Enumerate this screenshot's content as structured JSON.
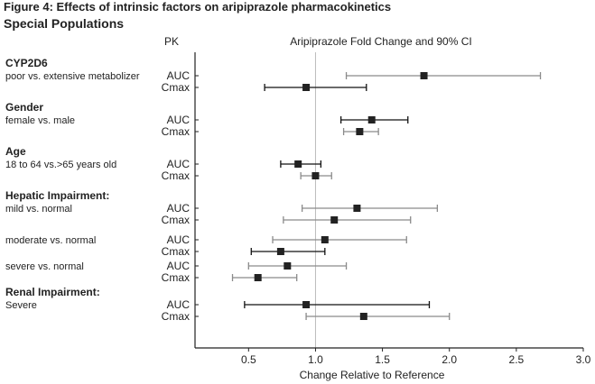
{
  "figure_title": "Figure 4:  Effects of intrinsic factors on aripiprazole pharmacokinetics",
  "subtitle": "Special Populations",
  "chart_data": {
    "type": "forest",
    "title": "Aripiprazole Fold Change and 90% CI",
    "pk_column_header": "PK",
    "xlabel": "Change Relative to Reference",
    "xlim": [
      0.1,
      3.0
    ],
    "xticks": [
      0.5,
      1.0,
      1.5,
      2.0,
      2.5,
      3.0
    ],
    "xtick_labels": [
      "0.5",
      "1.0",
      "1.5",
      "2.0",
      "2.5",
      "3.0"
    ],
    "reference_line": 1.0,
    "grid": false,
    "colors": {
      "marker": "#222222",
      "ci_dark": "#111111",
      "ci_gray": "#8a8a8a",
      "reference": "#bbbbbb"
    },
    "groups": [
      {
        "heading": "CYP2D6",
        "comparison": "poor vs. extensive metabolizer",
        "rows": [
          {
            "pk": "AUC",
            "estimate": 1.81,
            "lower": 1.23,
            "upper": 2.68,
            "ci_style": "gray"
          },
          {
            "pk": "Cmax",
            "estimate": 0.93,
            "lower": 0.62,
            "upper": 1.38,
            "ci_style": "dark"
          }
        ]
      },
      {
        "heading": "Gender",
        "comparison": "female vs. male",
        "rows": [
          {
            "pk": "AUC",
            "estimate": 1.42,
            "lower": 1.19,
            "upper": 1.69,
            "ci_style": "dark"
          },
          {
            "pk": "Cmax",
            "estimate": 1.33,
            "lower": 1.21,
            "upper": 1.47,
            "ci_style": "gray"
          }
        ]
      },
      {
        "heading": "Age",
        "comparison": "18 to 64 vs.>65 years old",
        "rows": [
          {
            "pk": "AUC",
            "estimate": 0.87,
            "lower": 0.74,
            "upper": 1.04,
            "ci_style": "dark"
          },
          {
            "pk": "Cmax",
            "estimate": 1.0,
            "lower": 0.89,
            "upper": 1.12,
            "ci_style": "gray"
          }
        ]
      },
      {
        "heading": "Hepatic Impairment:",
        "comparison": "mild vs. normal",
        "rows": [
          {
            "pk": "AUC",
            "estimate": 1.31,
            "lower": 0.9,
            "upper": 1.91,
            "ci_style": "gray"
          },
          {
            "pk": "Cmax",
            "estimate": 1.14,
            "lower": 0.76,
            "upper": 1.71,
            "ci_style": "gray"
          }
        ]
      },
      {
        "heading": "",
        "comparison": "moderate vs. normal",
        "rows": [
          {
            "pk": "AUC",
            "estimate": 1.07,
            "lower": 0.68,
            "upper": 1.68,
            "ci_style": "gray"
          },
          {
            "pk": "Cmax",
            "estimate": 0.74,
            "lower": 0.52,
            "upper": 1.07,
            "ci_style": "dark"
          }
        ]
      },
      {
        "heading": "",
        "comparison": "severe vs. normal",
        "rows": [
          {
            "pk": "AUC",
            "estimate": 0.79,
            "lower": 0.5,
            "upper": 1.23,
            "ci_style": "gray"
          },
          {
            "pk": "Cmax",
            "estimate": 0.57,
            "lower": 0.38,
            "upper": 0.86,
            "ci_style": "gray"
          }
        ]
      },
      {
        "heading": "Renal Impairment:",
        "comparison": "Severe",
        "rows": [
          {
            "pk": "AUC",
            "estimate": 0.93,
            "lower": 0.47,
            "upper": 1.85,
            "ci_style": "dark"
          },
          {
            "pk": "Cmax",
            "estimate": 1.36,
            "lower": 0.93,
            "upper": 2.0,
            "ci_style": "gray"
          }
        ]
      }
    ]
  }
}
